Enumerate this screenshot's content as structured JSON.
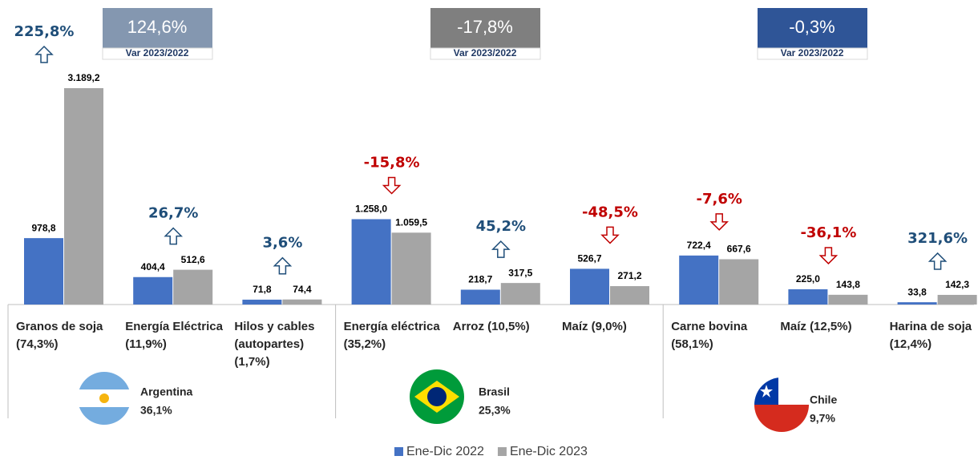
{
  "chart_data": {
    "type": "bar",
    "categories": [
      "Granos de soja\n(74,3%)",
      "Energía Eléctrica\n(11,9%)",
      "Hilos y cables\n(autopartes)\n(1,7%)",
      "Energía eléctrica\n(35,2%)",
      "Arroz (10,5%)",
      "Maíz  (9,0%)",
      "Carne bovina\n(58,1%)",
      "Maíz  (12,5%)",
      "Harina de soja\n(12,4%)"
    ],
    "series": [
      {
        "name": "Ene-Dic 2022",
        "color": "#4472c4",
        "values": [
          978.8,
          404.4,
          71.8,
          1258.0,
          218.7,
          526.7,
          722.4,
          225.0,
          33.8
        ],
        "value_labels": [
          "978,8",
          "404,4",
          "71,8",
          "1.258,0",
          "218,7",
          "526,7",
          "722,4",
          "225,0",
          "33,8"
        ]
      },
      {
        "name": "Ene-Dic 2023",
        "color": "#a5a5a5",
        "values": [
          3189.2,
          512.6,
          74.4,
          1059.5,
          317.5,
          271.2,
          667.6,
          143.8,
          142.3
        ],
        "value_labels": [
          "3.189,2",
          "512,6",
          "74,4",
          "1.059,5",
          "317,5",
          "271,2",
          "667,6",
          "143,8",
          "142,3"
        ]
      }
    ],
    "changes": [
      225.8,
      26.7,
      3.6,
      -15.8,
      45.2,
      -48.5,
      -7.6,
      -36.1,
      321.6
    ],
    "change_labels": [
      "225,8%",
      "26,7%",
      "3,6%",
      "-15,8%",
      "45,2%",
      "-48,5%",
      "-7,6%",
      "-36,1%",
      "321,6%"
    ],
    "up_color": "#1f4e79",
    "down_color": "#c00000",
    "groups": [
      {
        "name": "Argentina",
        "share": "36,1%",
        "change": "124,6%",
        "period": "Var 2023/2022",
        "box_color": "#8497b0"
      },
      {
        "name": "Brasil",
        "share": "25,3%",
        "change": "-17,8%",
        "period": "Var 2023/2022",
        "box_color": "#7f7f7f"
      },
      {
        "name": "Chile",
        "share": "9,7%",
        "change": "-0,3%",
        "period": "Var 2023/2022",
        "box_color": "#2f5597"
      }
    ]
  }
}
